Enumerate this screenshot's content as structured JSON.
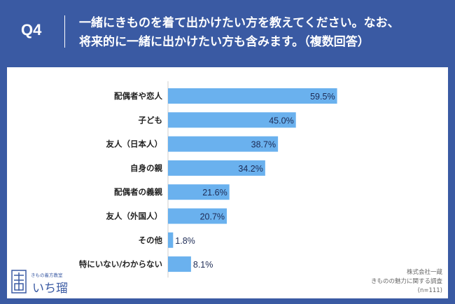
{
  "header": {
    "q_label": "Q4",
    "question_line1": "一緒にきものを着て出かけたい方を教えてください。なお、",
    "question_line2": "将来的に一緒に出かけたい方も含みます。（複数回答）"
  },
  "logo": {
    "tagline": "きもの着方教室",
    "name": "いち瑠"
  },
  "source": {
    "line1": "株式会社一蔵",
    "line2": "きものの魅力に関する調査",
    "line3": "(n=111)"
  },
  "colors": {
    "background": "#3a5aa3",
    "bar": "#6ab1ee",
    "card": "#ffffff",
    "gridline": "#cfcfcf"
  },
  "chart_data": {
    "type": "bar",
    "orientation": "horizontal",
    "categories": [
      "配偶者や恋人",
      "子ども",
      "友人（日本人）",
      "自身の親",
      "配偶者の義親",
      "友人（外国人）",
      "その他",
      "特にいない/わからない"
    ],
    "values": [
      59.5,
      45.0,
      38.7,
      34.2,
      21.6,
      20.7,
      1.8,
      8.1
    ],
    "value_labels": [
      "59.5%",
      "45.0%",
      "38.7%",
      "34.2%",
      "21.6%",
      "20.7%",
      "1.8%",
      "8.1%"
    ],
    "xlim": [
      0,
      100
    ],
    "grid": true,
    "legend": "none"
  }
}
